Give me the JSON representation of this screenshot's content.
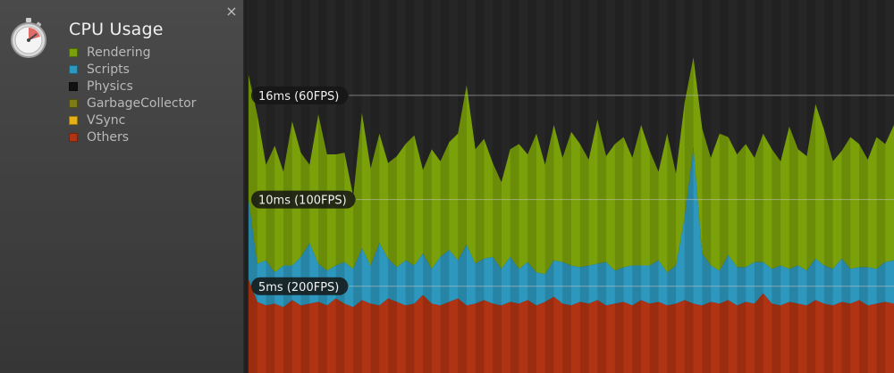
{
  "sidebar": {
    "title": "CPU Usage",
    "close_glyph": "×",
    "module_icon": "stopwatch-icon",
    "legend": [
      {
        "label": "Rendering",
        "color": "#7aa10a"
      },
      {
        "label": "Scripts",
        "color": "#2d97bd"
      },
      {
        "label": "Physics",
        "color": "#111111"
      },
      {
        "label": "GarbageCollector",
        "color": "#7e7a14"
      },
      {
        "label": "VSync",
        "color": "#e3b016"
      },
      {
        "label": "Others",
        "color": "#b03413"
      }
    ]
  },
  "chart_data": {
    "type": "area",
    "stacked": true,
    "y_unit": "ms",
    "ylim": [
      0,
      21.5
    ],
    "reference_lines": [
      {
        "value": 16,
        "label": "16ms (60FPS)"
      },
      {
        "value": 10,
        "label": "10ms (100FPS)"
      },
      {
        "value": 5,
        "label": "5ms (200FPS)"
      }
    ],
    "series": [
      {
        "name": "Others",
        "color": "#b03413",
        "values": [
          5.4,
          4.1,
          3.9,
          4.0,
          3.8,
          4.2,
          3.9,
          4.0,
          4.1,
          3.9,
          4.3,
          4.0,
          3.8,
          4.2,
          4.0,
          3.9,
          4.3,
          4.1,
          3.9,
          4.0,
          4.5,
          4.0,
          3.9,
          4.1,
          4.3,
          3.9,
          4.0,
          4.2,
          4.0,
          3.9,
          4.1,
          4.0,
          4.2,
          3.9,
          4.1,
          4.4,
          4.0,
          3.9,
          4.1,
          4.0,
          4.2,
          3.9,
          4.0,
          4.1,
          3.9,
          4.2,
          4.0,
          4.1,
          3.9,
          4.0,
          4.2,
          4.0,
          3.9,
          4.1,
          4.0,
          4.2,
          3.9,
          4.1,
          4.0,
          4.6,
          4.0,
          3.9,
          4.1,
          4.0,
          3.9,
          4.2,
          4.0,
          3.9,
          4.1,
          4.0,
          4.2,
          3.9,
          4.0,
          4.1,
          4.0
        ]
      },
      {
        "name": "Scripts",
        "color": "#2d97bd",
        "values": [
          4.6,
          2.2,
          2.6,
          1.8,
          2.4,
          2.0,
          2.8,
          3.5,
          2.2,
          2.0,
          1.9,
          2.4,
          2.2,
          3.0,
          2.2,
          3.6,
          2.3,
          2.0,
          2.6,
          2.2,
          2.4,
          2.0,
          2.8,
          3.0,
          2.2,
          3.5,
          2.3,
          2.4,
          2.7,
          2.1,
          2.6,
          2.0,
          2.2,
          1.9,
          1.6,
          2.1,
          2.4,
          2.3,
          2.0,
          2.2,
          2.1,
          2.5,
          1.9,
          2.0,
          2.3,
          2.0,
          2.2,
          2.4,
          1.9,
          2.2,
          4.8,
          9.0,
          3.0,
          2.1,
          1.9,
          2.6,
          2.2,
          2.0,
          2.4,
          1.8,
          2.0,
          2.3,
          1.9,
          2.2,
          2.0,
          2.4,
          2.2,
          2.1,
          2.5,
          2.0,
          1.9,
          2.2,
          2.0,
          2.3,
          2.5
        ]
      },
      {
        "name": "Rendering",
        "color": "#7aa10a",
        "values": [
          7.2,
          8.6,
          5.5,
          7.3,
          5.4,
          8.3,
          6.0,
          4.5,
          8.6,
          6.7,
          6.4,
          6.3,
          4.2,
          7.8,
          5.6,
          6.3,
          5.5,
          6.4,
          6.7,
          7.5,
          4.8,
          6.9,
          5.5,
          6.2,
          7.3,
          9.2,
          6.6,
          6.9,
          5.4,
          5.0,
          6.2,
          7.2,
          6.2,
          8.0,
          6.3,
          7.8,
          6.0,
          7.7,
          7.1,
          6.1,
          8.3,
          6.1,
          7.3,
          7.5,
          6.2,
          8.1,
          6.6,
          5.1,
          8.0,
          5.3,
          6.6,
          5.2,
          7.2,
          6.2,
          7.9,
          6.8,
          6.5,
          7.1,
          6.0,
          7.4,
          6.9,
          6.0,
          8.2,
          6.7,
          6.6,
          8.9,
          7.8,
          6.2,
          6.2,
          7.6,
          7.1,
          6.2,
          7.6,
          6.8,
          7.8
        ]
      }
    ]
  }
}
